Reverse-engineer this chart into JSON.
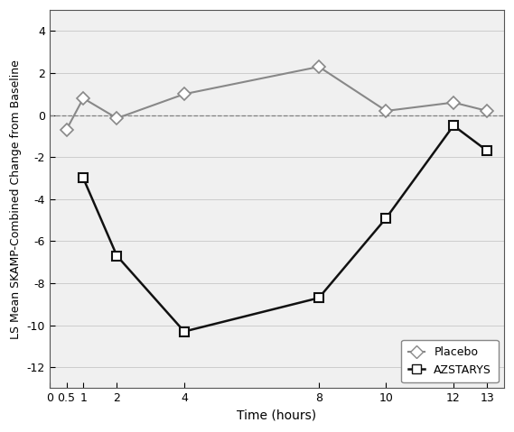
{
  "placebo_x": [
    0.5,
    1,
    2,
    4,
    8,
    10,
    12,
    13
  ],
  "placebo_y": [
    -0.7,
    0.8,
    -0.15,
    1.0,
    2.3,
    0.2,
    0.6,
    0.2
  ],
  "azstarys_x": [
    1,
    2,
    4,
    8,
    10,
    12,
    13
  ],
  "azstarys_y": [
    -3.0,
    -6.7,
    -10.3,
    -8.7,
    -4.9,
    -0.5,
    -1.7
  ],
  "xlabel": "Time (hours)",
  "ylabel": "LS Mean SKAMP-Combined Change from Baseline",
  "ylim": [
    -13,
    5
  ],
  "xlim": [
    0,
    13.5
  ],
  "yticks": [
    -12,
    -10,
    -8,
    -6,
    -4,
    -2,
    0,
    2,
    4
  ],
  "xticks": [
    0,
    0.5,
    1,
    2,
    4,
    8,
    10,
    12,
    13
  ],
  "xtick_labels": [
    "0",
    "0.5",
    "1",
    "2",
    "4",
    "8",
    "10",
    "12",
    "13"
  ],
  "placebo_color": "#888888",
  "azstarys_color": "#111111",
  "background_color": "#f0f0f0",
  "legend_placebo": "Placebo",
  "legend_azstarys": "AZSTARYS"
}
